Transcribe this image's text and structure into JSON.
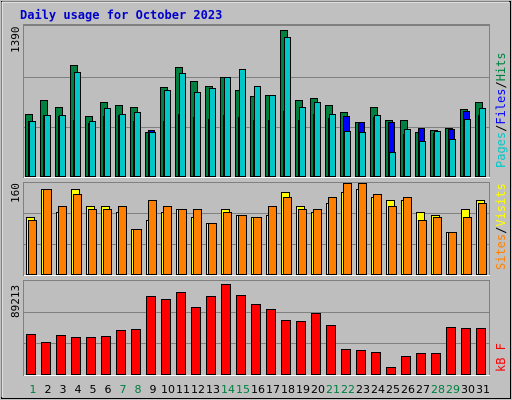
{
  "title": "Daily usage for October 2023",
  "colors": {
    "background": "#c0c0c0",
    "panel": "#bebebe",
    "title": "#0000cc",
    "weekday_label": "#000000",
    "weekend_label": "#008040",
    "pages": "#00c8c8",
    "files": "#0000ff",
    "hits": "#008040",
    "sites": "#ff8000",
    "visits": "#ffff00",
    "kbytes": "#ff0000"
  },
  "legend": {
    "top": [
      {
        "text": "Pages",
        "color": "#00c8c8"
      },
      {
        "text": "/",
        "color": "#000000"
      },
      {
        "text": "Files",
        "color": "#0000ff"
      },
      {
        "text": "/",
        "color": "#000000"
      },
      {
        "text": "Hits",
        "color": "#008040"
      }
    ],
    "mid": [
      {
        "text": "Sites",
        "color": "#ff8000"
      },
      {
        "text": "/",
        "color": "#000000"
      },
      {
        "text": "Visits",
        "color": "#ffff00"
      }
    ],
    "bot": [
      {
        "text": "kB F",
        "color": "#ff0000"
      }
    ]
  },
  "chart_data": {
    "type": "bar",
    "title": "Daily usage for October 2023",
    "categories": [
      "1",
      "2",
      "3",
      "4",
      "5",
      "6",
      "7",
      "8",
      "9",
      "10",
      "11",
      "12",
      "13",
      "14",
      "15",
      "16",
      "17",
      "18",
      "19",
      "20",
      "21",
      "22",
      "23",
      "24",
      "25",
      "26",
      "27",
      "28",
      "29",
      "30",
      "31"
    ],
    "weekends": [
      "1",
      "7",
      "8",
      "14",
      "15",
      "21",
      "22",
      "28",
      "29"
    ],
    "panels": [
      {
        "id": "top",
        "ymax": 1390,
        "ymax_label": "1390",
        "series": [
          {
            "name": "Hits",
            "values": [
              580,
              700,
              640,
              1020,
              560,
              690,
              660,
              640,
              410,
              820,
              1010,
              880,
              830,
              910,
              800,
              740,
              750,
              1340,
              700,
              720,
              660,
              590,
              500,
              640,
              520,
              520,
              410,
              430,
              450,
              620,
              690
            ]
          },
          {
            "name": "Files",
            "values": [
              510,
              570,
              560,
              520,
              490,
              560,
              570,
              510,
              430,
              510,
              580,
              550,
              530,
              570,
              550,
              520,
              520,
              600,
              520,
              580,
              540,
              560,
              500,
              550,
              500,
              390,
              450,
              400,
              440,
              600,
              570
            ]
          },
          {
            "name": "Pages",
            "values": [
              510,
              570,
              570,
              960,
              510,
              630,
              580,
              590,
              410,
              800,
              950,
              780,
              810,
              910,
              990,
              830,
              750,
              1280,
              640,
              690,
              580,
              420,
              410,
              570,
              230,
              440,
              330,
              420,
              350,
              530,
              630
            ]
          }
        ]
      },
      {
        "id": "mid",
        "ymax": 160,
        "ymax_label": "160",
        "series": [
          {
            "name": "Visits",
            "values": [
              100,
              150,
              110,
              150,
              120,
              120,
              110,
              80,
              95,
              110,
              115,
              100,
              90,
              115,
              105,
              100,
              105,
              145,
              120,
              110,
              125,
              145,
              150,
              135,
              130,
              130,
              110,
              105,
              75,
              115,
              130
            ]
          },
          {
            "name": "Sites",
            "values": [
              95,
              150,
              120,
              140,
              115,
              115,
              120,
              80,
              130,
              120,
              115,
              115,
              90,
              110,
              105,
              100,
              120,
              135,
              115,
              115,
              135,
              160,
              160,
              140,
              120,
              135,
              95,
              100,
              75,
              100,
              125
            ]
          }
        ]
      },
      {
        "id": "bot",
        "ymax": 89213,
        "ymax_label": "89213",
        "series": [
          {
            "name": "kB F",
            "values": [
              39000,
              31000,
              38000,
              36000,
              36000,
              37000,
              43000,
              44000,
              75000,
              72000,
              79000,
              65000,
              75000,
              86000,
              76000,
              67000,
              63000,
              52000,
              51000,
              59000,
              47000,
              25000,
              24000,
              22000,
              8000,
              18000,
              21000,
              21000,
              46000,
              45000,
              45000
            ]
          }
        ]
      }
    ]
  }
}
